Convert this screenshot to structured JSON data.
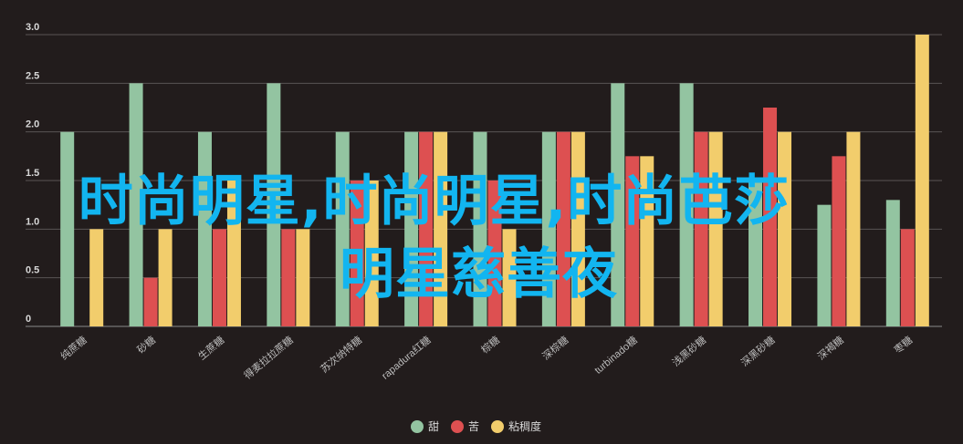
{
  "chart_data": {
    "type": "bar",
    "categories": [
      "纯蔗糖",
      "砂糖",
      "生蔗糖",
      "得麦拉拉蔗糖",
      "苏次纳特糖",
      "rapadura红糖",
      "棕糖",
      "深棕糖",
      "turbinado糖",
      "浅黑砂糖",
      "深黑砂糖",
      "深褐糖",
      "枣糖"
    ],
    "series": [
      {
        "name": "甜",
        "color": "#93c4a1",
        "values": [
          2.0,
          2.5,
          2.0,
          2.5,
          2.0,
          2.0,
          2.0,
          2.0,
          2.5,
          2.5,
          1.5,
          1.25,
          1.3
        ]
      },
      {
        "name": "苦",
        "color": "#dd5051",
        "values": [
          0,
          0.5,
          1.0,
          1.0,
          1.5,
          2.0,
          1.5,
          2.0,
          1.75,
          2.0,
          2.25,
          1.75,
          1.0
        ]
      },
      {
        "name": "粘稠度",
        "color": "#f2cd6c",
        "values": [
          1.0,
          1.0,
          1.5,
          1.0,
          1.5,
          2.0,
          1.0,
          2.0,
          1.75,
          2.0,
          2.0,
          2.0,
          3.0
        ]
      }
    ],
    "yticks": [
      "0",
      "0.5",
      "1.0",
      "1.5",
      "2.0",
      "2.5",
      "3.0"
    ],
    "ylim": [
      0,
      3
    ],
    "grid": true,
    "legend_position": "bottom-center",
    "title": "",
    "xlabel": "",
    "ylabel": ""
  },
  "overlay": {
    "line1": "时尚明星,时尚明星,时尚芭莎",
    "line2": "明星慈善夜"
  }
}
